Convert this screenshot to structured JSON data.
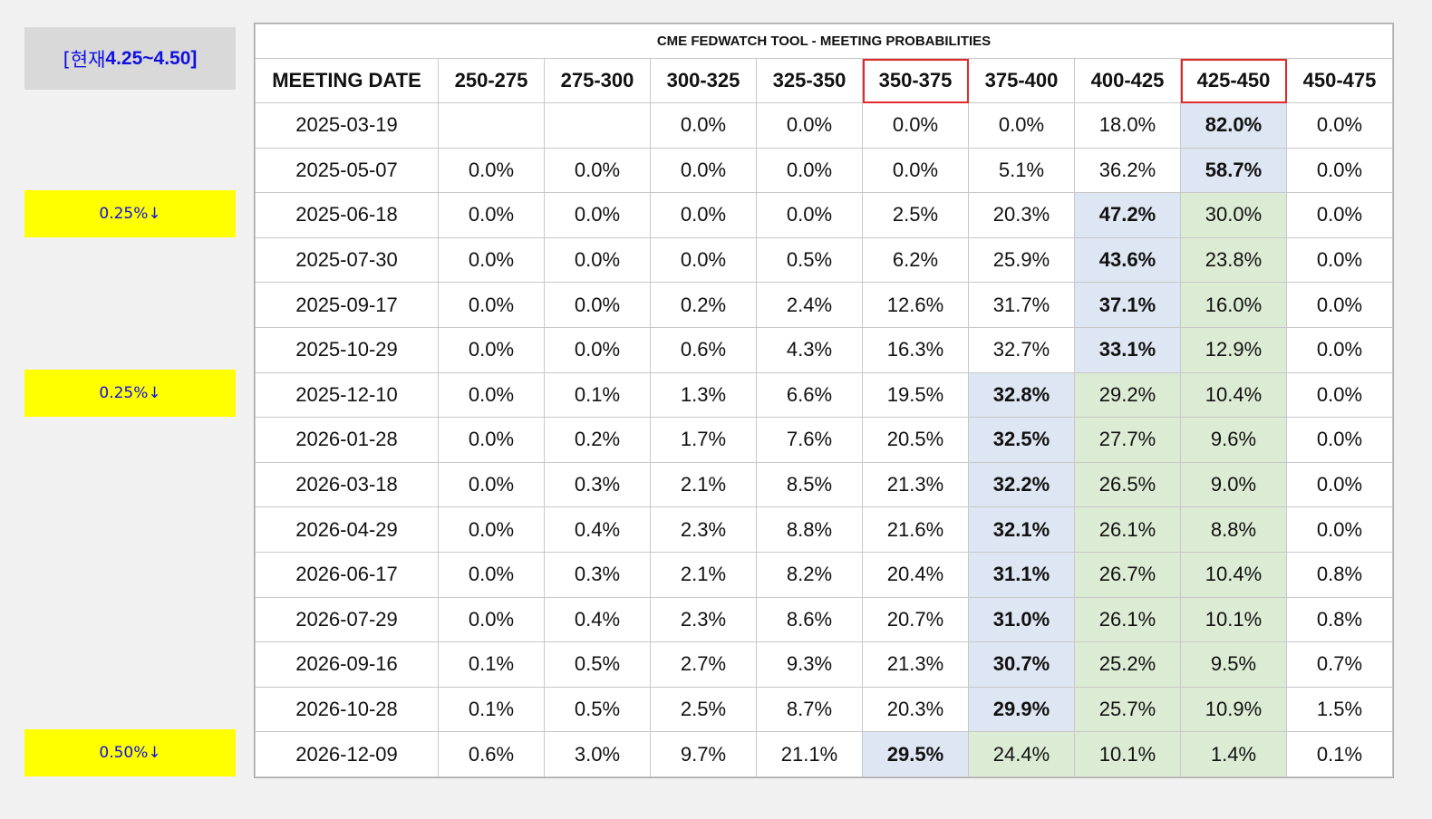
{
  "current_rate": {
    "prefix": "[현재 ",
    "value": "4.25~4.50]"
  },
  "cut_tags": [
    {
      "label": "0.25%↓",
      "row": "2025-06-18"
    },
    {
      "label": "0.25%↓",
      "row": "2025-12-10"
    },
    {
      "label": "0.50%↓",
      "row": "2026-12-09"
    }
  ],
  "table": {
    "title": "CME FEDWATCH TOOL - MEETING PROBABILITIES",
    "headers": [
      "MEETING DATE",
      "250-275",
      "275-300",
      "300-325",
      "325-350",
      "350-375",
      "375-400",
      "400-425",
      "425-450",
      "450-475"
    ],
    "highlighted_headers": [
      "350-375",
      "425-450"
    ],
    "colors": {
      "max_cell": "#dde6f2",
      "green_cell": "#dcebd3",
      "cut_tag": "#ffff00",
      "highlight_border": "#e22a2a"
    },
    "rows": [
      {
        "date": "2025-03-19",
        "values": [
          "",
          "",
          "0.0%",
          "0.0%",
          "0.0%",
          "0.0%",
          "18.0%",
          "82.0%",
          "0.0%"
        ],
        "max": 7,
        "green": []
      },
      {
        "date": "2025-05-07",
        "values": [
          "0.0%",
          "0.0%",
          "0.0%",
          "0.0%",
          "0.0%",
          "5.1%",
          "36.2%",
          "58.7%",
          "0.0%"
        ],
        "max": 7,
        "green": []
      },
      {
        "date": "2025-06-18",
        "values": [
          "0.0%",
          "0.0%",
          "0.0%",
          "0.0%",
          "2.5%",
          "20.3%",
          "47.2%",
          "30.0%",
          "0.0%"
        ],
        "max": 6,
        "green": [
          7
        ]
      },
      {
        "date": "2025-07-30",
        "values": [
          "0.0%",
          "0.0%",
          "0.0%",
          "0.5%",
          "6.2%",
          "25.9%",
          "43.6%",
          "23.8%",
          "0.0%"
        ],
        "max": 6,
        "green": [
          7
        ]
      },
      {
        "date": "2025-09-17",
        "values": [
          "0.0%",
          "0.0%",
          "0.2%",
          "2.4%",
          "12.6%",
          "31.7%",
          "37.1%",
          "16.0%",
          "0.0%"
        ],
        "max": 6,
        "green": [
          7
        ]
      },
      {
        "date": "2025-10-29",
        "values": [
          "0.0%",
          "0.0%",
          "0.6%",
          "4.3%",
          "16.3%",
          "32.7%",
          "33.1%",
          "12.9%",
          "0.0%"
        ],
        "max": 6,
        "green": [
          7
        ]
      },
      {
        "date": "2025-12-10",
        "values": [
          "0.0%",
          "0.1%",
          "1.3%",
          "6.6%",
          "19.5%",
          "32.8%",
          "29.2%",
          "10.4%",
          "0.0%"
        ],
        "max": 5,
        "green": [
          6,
          7
        ]
      },
      {
        "date": "2026-01-28",
        "values": [
          "0.0%",
          "0.2%",
          "1.7%",
          "7.6%",
          "20.5%",
          "32.5%",
          "27.7%",
          "9.6%",
          "0.0%"
        ],
        "max": 5,
        "green": [
          6,
          7
        ]
      },
      {
        "date": "2026-03-18",
        "values": [
          "0.0%",
          "0.3%",
          "2.1%",
          "8.5%",
          "21.3%",
          "32.2%",
          "26.5%",
          "9.0%",
          "0.0%"
        ],
        "max": 5,
        "green": [
          6,
          7
        ]
      },
      {
        "date": "2026-04-29",
        "values": [
          "0.0%",
          "0.4%",
          "2.3%",
          "8.8%",
          "21.6%",
          "32.1%",
          "26.1%",
          "8.8%",
          "0.0%"
        ],
        "max": 5,
        "green": [
          6,
          7
        ]
      },
      {
        "date": "2026-06-17",
        "values": [
          "0.0%",
          "0.3%",
          "2.1%",
          "8.2%",
          "20.4%",
          "31.1%",
          "26.7%",
          "10.4%",
          "0.8%"
        ],
        "max": 5,
        "green": [
          6,
          7
        ]
      },
      {
        "date": "2026-07-29",
        "values": [
          "0.0%",
          "0.4%",
          "2.3%",
          "8.6%",
          "20.7%",
          "31.0%",
          "26.1%",
          "10.1%",
          "0.8%"
        ],
        "max": 5,
        "green": [
          6,
          7
        ]
      },
      {
        "date": "2026-09-16",
        "values": [
          "0.1%",
          "0.5%",
          "2.7%",
          "9.3%",
          "21.3%",
          "30.7%",
          "25.2%",
          "9.5%",
          "0.7%"
        ],
        "max": 5,
        "green": [
          6,
          7
        ]
      },
      {
        "date": "2026-10-28",
        "values": [
          "0.1%",
          "0.5%",
          "2.5%",
          "8.7%",
          "20.3%",
          "29.9%",
          "25.7%",
          "10.9%",
          "1.5%"
        ],
        "max": 5,
        "green": [
          6,
          7
        ]
      },
      {
        "date": "2026-12-09",
        "values": [
          "0.6%",
          "3.0%",
          "9.7%",
          "21.1%",
          "29.5%",
          "24.4%",
          "10.1%",
          "1.4%",
          "0.1%"
        ],
        "max": 4,
        "green": [
          5,
          6,
          7
        ]
      }
    ]
  }
}
